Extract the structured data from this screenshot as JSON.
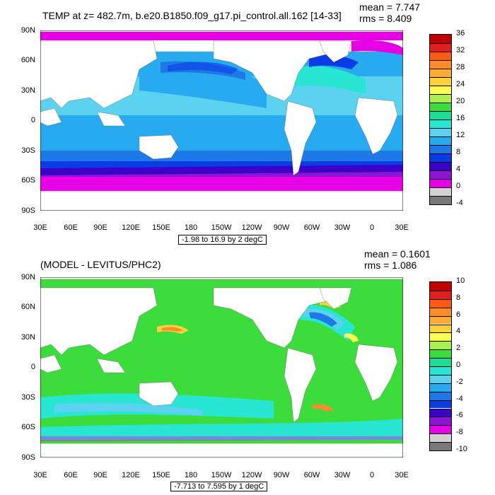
{
  "lat_labels": [
    "90N",
    "60N",
    "30N",
    "0",
    "30S",
    "60S",
    "90S"
  ],
  "lon_labels": [
    "30E",
    "60E",
    "90E",
    "120E",
    "150E",
    "180",
    "150W",
    "120W",
    "90W",
    "60W",
    "30W",
    "0",
    "30E"
  ],
  "panels": [
    {
      "title": "TEMP at z= 482.7m, b.e20.B1850.f09_g17.pi_control.all.162 [14-33]",
      "mean": "mean = 7.747",
      "rms": "rms = 8.409",
      "range": "-1.98 to 16.9 by 2 degC",
      "colorbar_labels": [
        "36",
        "32",
        "28",
        "24",
        "20",
        "16",
        "12",
        "8",
        "4",
        "0",
        "-4"
      ],
      "colorbar_colors": [
        "#c00000",
        "#e02020",
        "#ff5a14",
        "#ff8c28",
        "#ffaa33",
        "#ffd23c",
        "#ffff50",
        "#aaf050",
        "#3cdc3c",
        "#1edc96",
        "#28e6d2",
        "#5ad2f0",
        "#28aaf0",
        "#1e78e6",
        "#0a3ce6",
        "#3c00c8",
        "#8c14d2",
        "#e600e6",
        "#d2d2d2",
        "#787878"
      ]
    },
    {
      "title": "(MODEL - LEVITUS/PHC2)",
      "mean": "mean = 0.1601",
      "rms": "rms = 1.086",
      "range": "-7.713 to 7.595 by 1 degC",
      "colorbar_labels": [
        "10",
        "8",
        "6",
        "4",
        "2",
        "0",
        "-2",
        "-4",
        "-6",
        "-8",
        "-10"
      ],
      "colorbar_colors": [
        "#c00000",
        "#e02020",
        "#ff5a14",
        "#ff8c28",
        "#ffaa33",
        "#ffd23c",
        "#ffff50",
        "#aaf050",
        "#3cdc3c",
        "#1edc96",
        "#28e6d2",
        "#5ad2f0",
        "#28aaf0",
        "#1e78e6",
        "#0a3ce6",
        "#3c00c8",
        "#8c14d2",
        "#e600e6",
        "#d2d2d2",
        "#787878"
      ]
    }
  ]
}
